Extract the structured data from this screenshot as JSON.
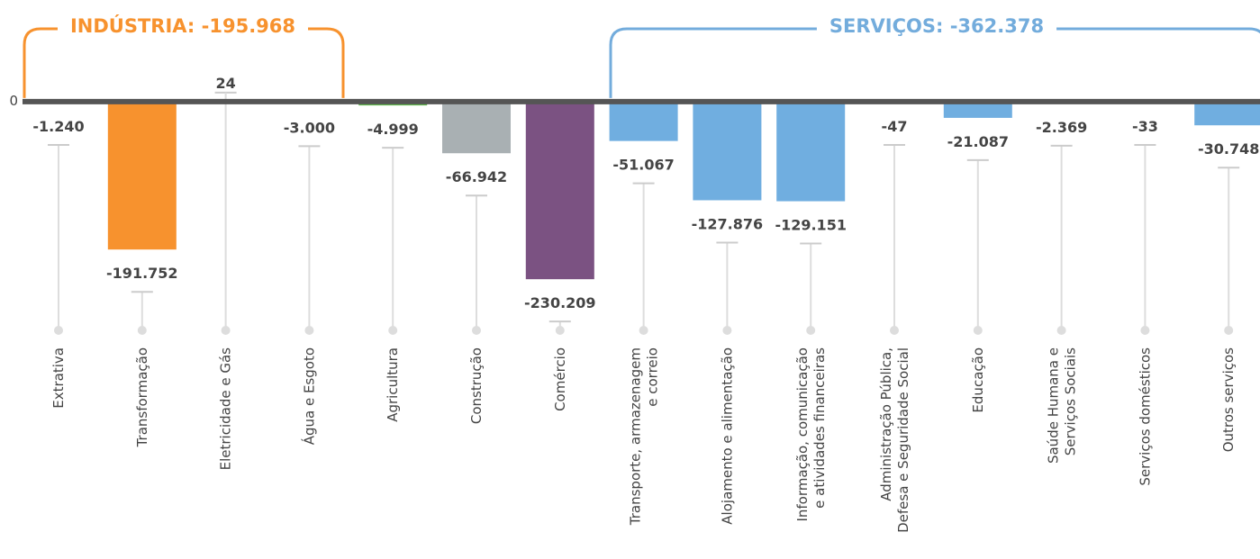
{
  "chart_data": {
    "type": "bar",
    "categories": [
      "Extrativa",
      "Transformação",
      "Eletricidade e Gás",
      "Água e Esgoto",
      "Agricultura",
      "Construção",
      "Comércio",
      "Transporte, armazenagem\ne correio",
      "Alojamento e alimentação",
      "Informação, comunicação\ne atividades financeiras",
      "Administração Pública,\nDefesa e Seguridade Social",
      "Educação",
      "Saúde Humana e\nServiços Sociais",
      "Serviços domésticos",
      "Outros serviços"
    ],
    "values": [
      -1240,
      -191752,
      24,
      -3000,
      -4999,
      -66942,
      -230209,
      -51067,
      -127876,
      -129151,
      -47,
      -21087,
      -2369,
      -33,
      -30748
    ],
    "value_labels": [
      "-1.240",
      "-191.752",
      "24",
      "-3.000",
      "-4.999",
      "-66.942",
      "-230.209",
      "-51.067",
      "-127.876",
      "-129.151",
      "-47",
      "-21.087",
      "-2.369",
      "-33",
      "-30.748"
    ],
    "colors": [
      "#f7922e",
      "#f7922e",
      "#f7922e",
      "#f7922e",
      "#63b84f",
      "#a9b0b3",
      "#7b5282",
      "#70aee0",
      "#70aee0",
      "#70aee0",
      "#70aee0",
      "#70aee0",
      "#70aee0",
      "#70aee0",
      "#70aee0"
    ],
    "ylim": [
      -300000,
      120000
    ],
    "yticks": [
      0
    ],
    "annotations": [
      {
        "text": "INDÚSTRIA: -195.968",
        "color": "#f7922e"
      },
      {
        "text": "SERVIÇOS: -362.378",
        "color": "#73acdc"
      }
    ]
  }
}
